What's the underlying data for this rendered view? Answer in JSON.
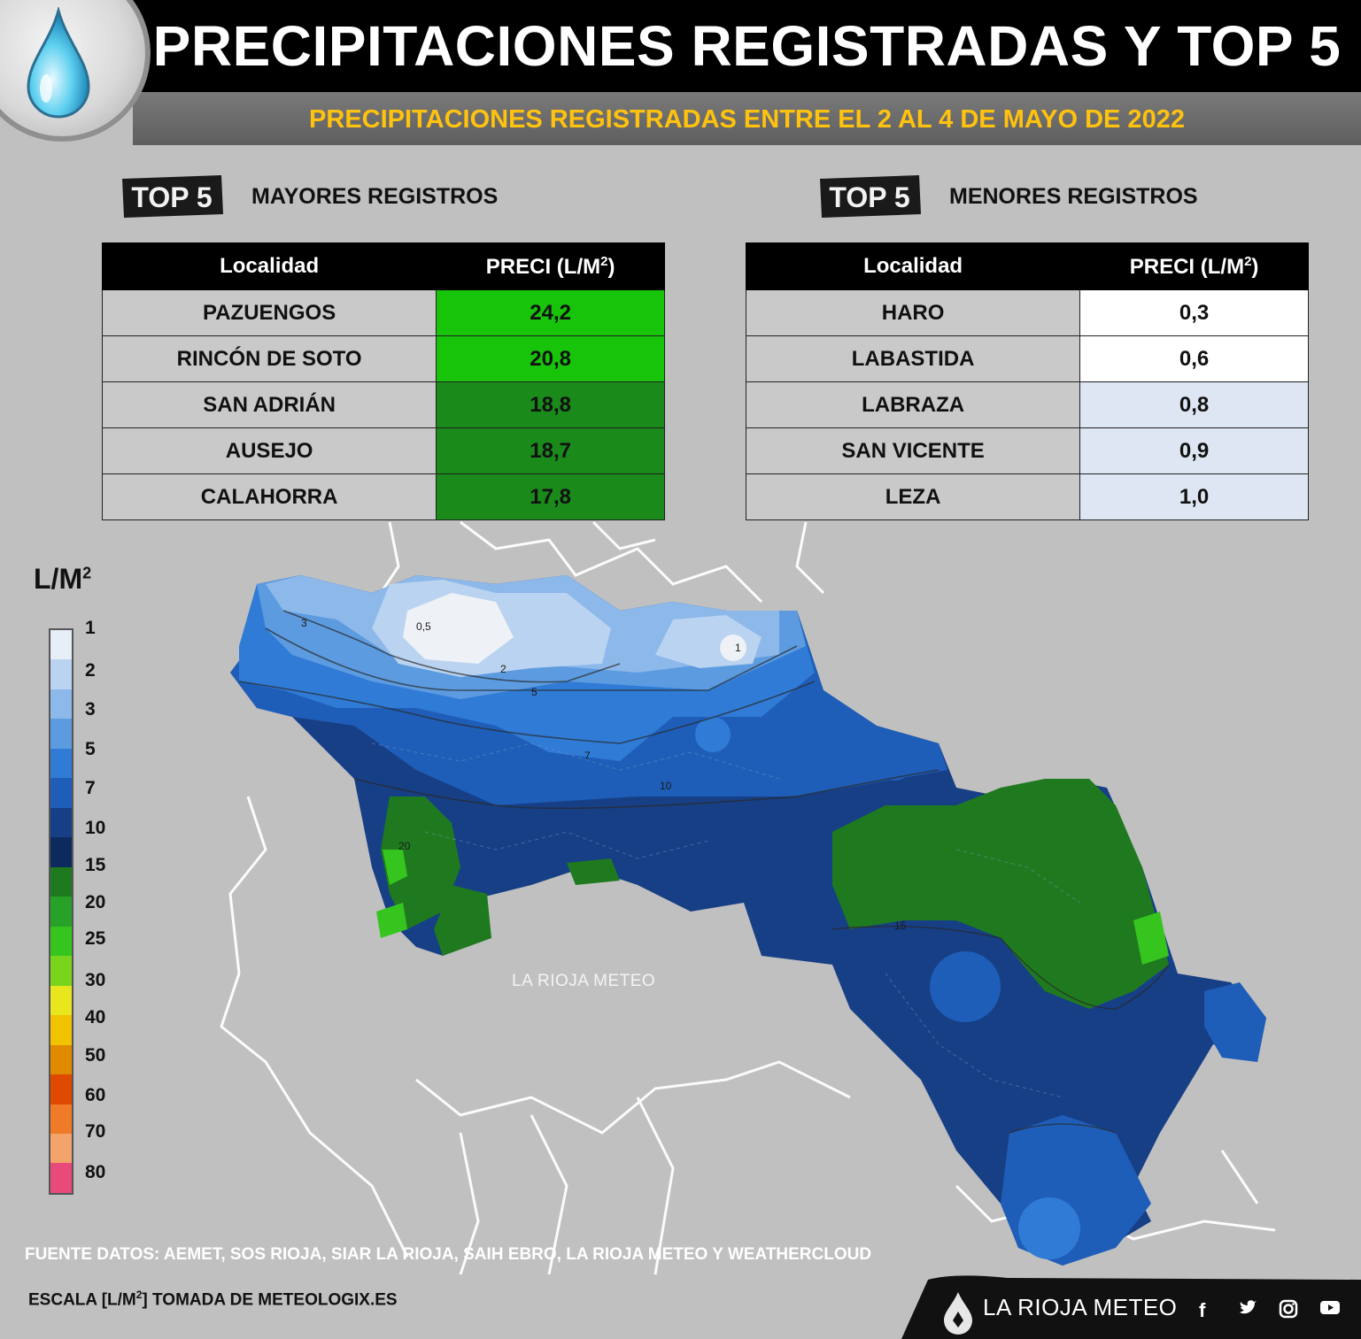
{
  "header": {
    "title": "PRECIPITACIONES REGISTRADAS Y TOP 5",
    "subtitle": "PRECIPITACIONES REGISTRADAS ENTRE EL 2 AL 4 DE MAYO DE 2022",
    "logo_icon": "water-drop-icon"
  },
  "top_high": {
    "badge": "TOP 5",
    "title": "MAYORES REGISTROS",
    "col_location": "Localidad",
    "col_value": "PRECI (L/M",
    "col_value_sup": "2",
    "col_value_end": ")",
    "rows": [
      {
        "location": "PAZUENGOS",
        "value": "24,2",
        "color": "#17c40a"
      },
      {
        "location": "RINCÓN DE SOTO",
        "value": "20,8",
        "color": "#17c40a"
      },
      {
        "location": "SAN ADRIÁN",
        "value": "18,8",
        "color": "#1a8a1a"
      },
      {
        "location": "AUSEJO",
        "value": "18,7",
        "color": "#1a8a1a"
      },
      {
        "location": "CALAHORRA",
        "value": "17,8",
        "color": "#1a8a1a"
      }
    ]
  },
  "top_low": {
    "badge": "TOP 5",
    "title": "MENORES REGISTROS",
    "col_location": "Localidad",
    "col_value": "PRECI (L/M",
    "col_value_sup": "2",
    "col_value_end": ")",
    "rows": [
      {
        "location": "HARO",
        "value": "0,3",
        "color": "#ffffff"
      },
      {
        "location": "LABASTIDA",
        "value": "0,6",
        "color": "#ffffff"
      },
      {
        "location": "LABRAZA",
        "value": "0,8",
        "color": "#dde6f2"
      },
      {
        "location": "SAN VICENTE",
        "value": "0,9",
        "color": "#dde6f2"
      },
      {
        "location": "LEZA",
        "value": "1,0",
        "color": "#dde6f2"
      }
    ]
  },
  "legend": {
    "unit": "L/M",
    "unit_sup": "2",
    "ticks": [
      "1",
      "2",
      "3",
      "5",
      "7",
      "10",
      "15",
      "20",
      "25",
      "30",
      "40",
      "50",
      "60",
      "70",
      "80"
    ],
    "colors": [
      "#e6eef8",
      "#b9d3f0",
      "#8cb8ea",
      "#5c9be0",
      "#2f7bd6",
      "#1f5eb8",
      "#173f86",
      "#0d2a5e",
      "#1f7a1f",
      "#27a127",
      "#36c51f",
      "#78d51c",
      "#e8e61f",
      "#f0c300",
      "#e08a00",
      "#e04a00",
      "#ef7a28",
      "#f2a46a",
      "#e84b7a"
    ]
  },
  "map": {
    "watermark": "LA RIOJA METEO",
    "contour_labels": [
      "0,5",
      "1",
      "2",
      "3",
      "5",
      "7",
      "10",
      "15",
      "20"
    ]
  },
  "footer": {
    "source": "FUENTE DATOS: AEMET, SOS RIOJA, SIAR LA RIOJA, SAIH EBRO, LA RIOJA METEO  Y WEATHERCLOUD",
    "scale": "ESCALA [L/M",
    "scale_sup": "2",
    "scale_end": "] TOMADA DE METEOLOGIX.ES",
    "brand": "LA RIOJA METEO",
    "social": [
      "facebook-icon",
      "twitter-icon",
      "instagram-icon",
      "youtube-icon"
    ]
  }
}
